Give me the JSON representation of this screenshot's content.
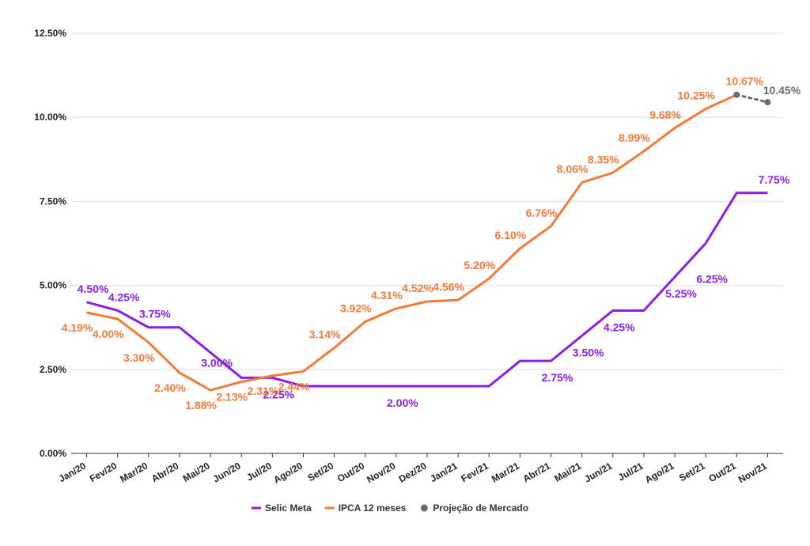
{
  "chart_data": {
    "type": "line",
    "categories": [
      "Jan/20",
      "Fev/20",
      "Mar/20",
      "Abr/20",
      "Mai/20",
      "Jun/20",
      "Jul/20",
      "Ago/20",
      "Set/20",
      "Out/20",
      "Nov/20",
      "Dez/20",
      "Jan/21",
      "Fev/21",
      "Mar/21",
      "Abr/21",
      "Mai/21",
      "Jun/21",
      "Jul/21",
      "Ago/21",
      "Set/21",
      "Out/21",
      "Nov/21"
    ],
    "series": [
      {
        "name": "Selic Meta",
        "color": "#8b1ee6",
        "dash": false,
        "values": [
          4.5,
          4.25,
          3.75,
          3.75,
          3.0,
          2.25,
          2.25,
          2.0,
          2.0,
          2.0,
          2.0,
          2.0,
          2.0,
          2.0,
          2.75,
          2.75,
          3.5,
          4.25,
          4.25,
          5.25,
          6.25,
          7.75,
          7.75
        ],
        "value_labels": [
          "4.50%",
          "4.25%",
          "3.75%",
          null,
          "3.00%",
          null,
          "2.25%",
          null,
          null,
          null,
          "2.00%",
          null,
          null,
          null,
          null,
          "2.75%",
          "3.50%",
          "4.25%",
          null,
          "5.25%",
          "6.25%",
          null,
          "7.75%"
        ]
      },
      {
        "name": "IPCA 12 meses",
        "color": "#f47a3a",
        "dash": false,
        "values": [
          4.19,
          4.0,
          3.3,
          2.4,
          1.88,
          2.13,
          2.31,
          2.44,
          3.14,
          3.92,
          4.31,
          4.52,
          4.56,
          5.2,
          6.1,
          6.76,
          8.06,
          8.35,
          8.99,
          9.68,
          10.25,
          10.67,
          null
        ],
        "value_labels": [
          "4.19%",
          "4.00%",
          "3.30%",
          "2.40%",
          "1.88%",
          "2.13%",
          "2.31%",
          "2.44%",
          "3.14%",
          "3.92%",
          "4.31%",
          "4.52%",
          "4.56%",
          "5.20%",
          "6.10%",
          "6.76%",
          "8.06%",
          "8.35%",
          "8.99%",
          "9.68%",
          "10.25%",
          "10.67%",
          null
        ]
      },
      {
        "name": "Projeção de Mercado",
        "color": "#6b6b6b",
        "dash": true,
        "values": [
          null,
          null,
          null,
          null,
          null,
          null,
          null,
          null,
          null,
          null,
          null,
          null,
          null,
          null,
          null,
          null,
          null,
          null,
          null,
          null,
          null,
          10.67,
          10.45
        ],
        "value_labels": [
          null,
          null,
          null,
          null,
          null,
          null,
          null,
          null,
          null,
          null,
          null,
          null,
          null,
          null,
          null,
          null,
          null,
          null,
          null,
          null,
          null,
          null,
          "10.45%"
        ]
      }
    ],
    "ylim": [
      0,
      12.5
    ],
    "yticks": [
      {
        "value": 0,
        "label": "0.00%"
      },
      {
        "value": 2.5,
        "label": "2.50%"
      },
      {
        "value": 5,
        "label": "5.00%"
      },
      {
        "value": 7.5,
        "label": "7.50%"
      },
      {
        "value": 10,
        "label": "10.00%"
      },
      {
        "value": 12.5,
        "label": "12.50%"
      }
    ],
    "grid": true,
    "legend": "bottom"
  }
}
